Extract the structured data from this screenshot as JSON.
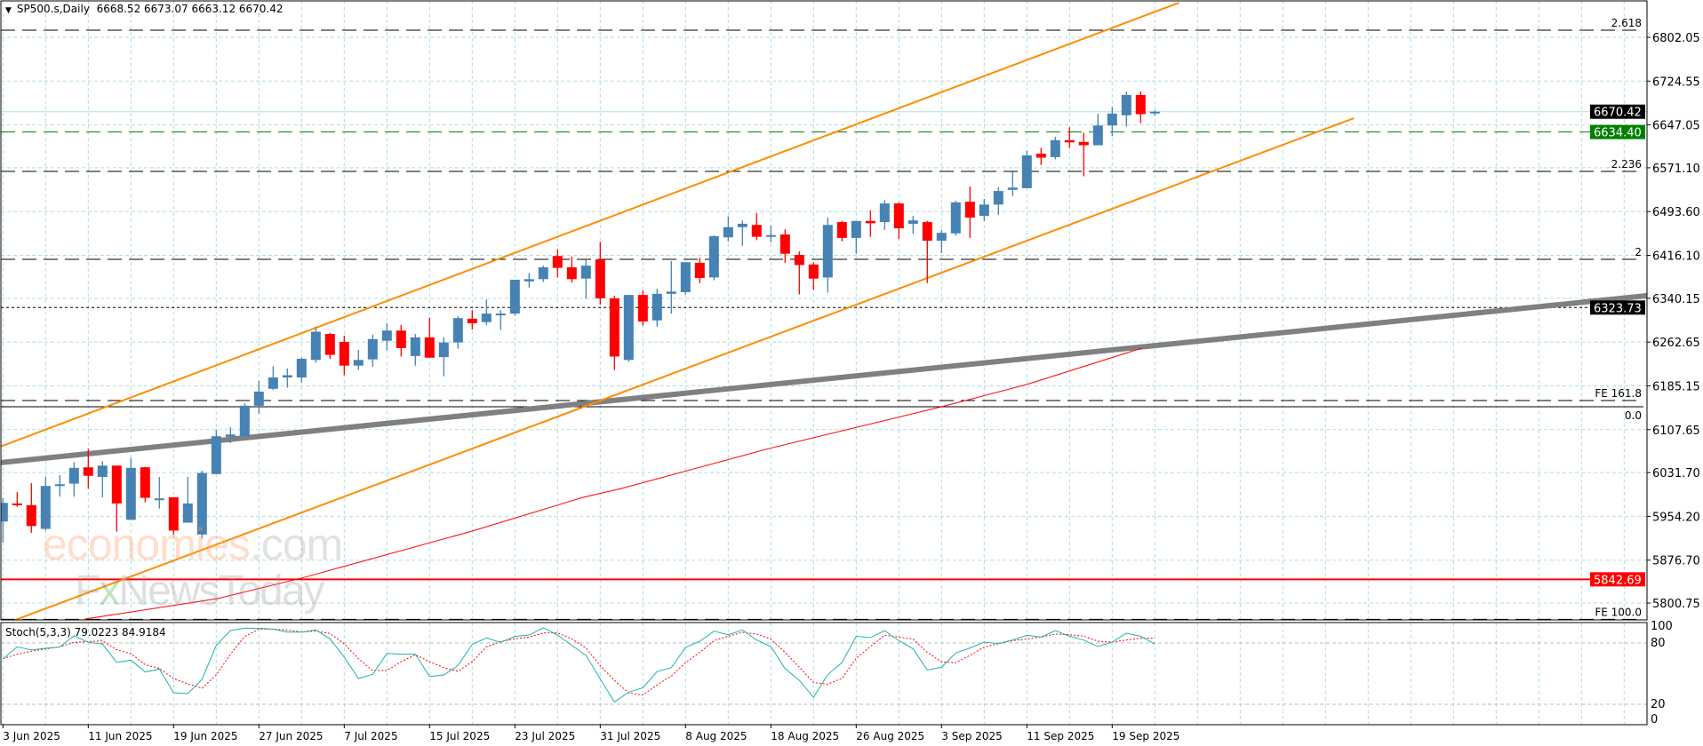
{
  "header": {
    "arrow_icon": "triangle-down-icon",
    "symbol": "SP500.s,Daily",
    "ohlc": "6668.52 6673.07 6663.12 6670.42"
  },
  "watermark": {
    "part1": "economies",
    "part2": ".com",
    "line2a": "F",
    "line2b": "x",
    "line2c": "NewsToday"
  },
  "colors": {
    "bull": "#4682B4",
    "bear": "#FF0000",
    "channel": "#FF8C00",
    "trendline": "#808080",
    "ma": "#FF0000",
    "grid": "#B0DDE0",
    "stoch_main": "#20B2AA",
    "stoch_signal": "#FF0000",
    "tag_dark": "#000000",
    "tag_green": "#008000",
    "tag_red": "#FF0000"
  },
  "chart_data": {
    "type": "candlestick",
    "title": "SP500.s,Daily",
    "ylim": [
      5771,
      6865
    ],
    "grid": true,
    "price_axis_ticks": [
      "6802.05",
      "6724.55",
      "6647.05",
      "6571.10",
      "6493.60",
      "6416.10",
      "6340.15",
      "6262.65",
      "6185.15",
      "6107.65",
      "6031.70",
      "5954.20",
      "5876.70",
      "5800.75"
    ],
    "date_labels": [
      {
        "i": 0,
        "label": "3 Jun 2025"
      },
      {
        "i": 6,
        "label": "11 Jun 2025"
      },
      {
        "i": 12,
        "label": "19 Jun 2025"
      },
      {
        "i": 18,
        "label": "27 Jun 2025"
      },
      {
        "i": 24,
        "label": "7 Jul 2025"
      },
      {
        "i": 30,
        "label": "15 Jul 2025"
      },
      {
        "i": 36,
        "label": "23 Jul 2025"
      },
      {
        "i": 42,
        "label": "31 Jul 2025"
      },
      {
        "i": 48,
        "label": "8 Aug 2025"
      },
      {
        "i": 54,
        "label": "18 Aug 2025"
      },
      {
        "i": 60,
        "label": "26 Aug 2025"
      },
      {
        "i": 66,
        "label": "3 Sep 2025"
      },
      {
        "i": 72,
        "label": "11 Sep 2025"
      },
      {
        "i": 78,
        "label": "19 Sep 2025"
      }
    ],
    "candles_ohlc": [
      [
        5945,
        5987,
        5908,
        5978
      ],
      [
        5977,
        5997,
        5971,
        5974
      ],
      [
        5974,
        6013,
        5925,
        5937
      ],
      [
        5932,
        6024,
        5929,
        6008
      ],
      [
        6008,
        6027,
        5989,
        6011
      ],
      [
        6012,
        6050,
        5989,
        6040
      ],
      [
        6041,
        6074,
        6003,
        6026
      ],
      [
        6024,
        6052,
        5988,
        6044
      ],
      [
        6044,
        6044,
        5927,
        5977
      ],
      [
        5948,
        6057,
        5948,
        6040
      ],
      [
        6041,
        6042,
        5979,
        5987
      ],
      [
        5984,
        6024,
        5968,
        5986
      ],
      [
        5988,
        5988,
        5921,
        5929
      ],
      [
        5943,
        6024,
        5943,
        5977
      ],
      [
        5922,
        6035,
        5915,
        6031
      ],
      [
        6029,
        6108,
        6029,
        6096
      ],
      [
        6095,
        6112,
        6084,
        6099
      ],
      [
        6096,
        6154,
        6096,
        6150
      ],
      [
        6150,
        6194,
        6136,
        6175
      ],
      [
        6180,
        6220,
        6178,
        6200
      ],
      [
        6200,
        6216,
        6182,
        6204
      ],
      [
        6200,
        6235,
        6191,
        6233
      ],
      [
        6231,
        6290,
        6226,
        6281
      ],
      [
        6277,
        6279,
        6233,
        6240
      ],
      [
        6263,
        6274,
        6204,
        6221
      ],
      [
        6221,
        6249,
        6213,
        6231
      ],
      [
        6232,
        6276,
        6219,
        6268
      ],
      [
        6265,
        6296,
        6248,
        6283
      ],
      [
        6283,
        6293,
        6237,
        6252
      ],
      [
        6238,
        6277,
        6221,
        6271
      ],
      [
        6271,
        6306,
        6235,
        6235
      ],
      [
        6236,
        6271,
        6202,
        6262
      ],
      [
        6262,
        6309,
        6251,
        6305
      ],
      [
        6304,
        6319,
        6285,
        6296
      ],
      [
        6298,
        6338,
        6293,
        6313
      ],
      [
        6312,
        6319,
        6284,
        6313
      ],
      [
        6313,
        6373,
        6309,
        6373
      ],
      [
        6370,
        6385,
        6359,
        6374
      ],
      [
        6374,
        6398,
        6369,
        6395
      ],
      [
        6415,
        6427,
        6377,
        6394
      ],
      [
        6395,
        6414,
        6368,
        6374
      ],
      [
        6375,
        6409,
        6339,
        6398
      ],
      [
        6409,
        6440,
        6329,
        6340
      ],
      [
        6340,
        6345,
        6213,
        6237
      ],
      [
        6231,
        6346,
        6228,
        6346
      ],
      [
        6346,
        6354,
        6292,
        6299
      ],
      [
        6301,
        6357,
        6290,
        6348
      ],
      [
        6348,
        6406,
        6313,
        6352
      ],
      [
        6351,
        6404,
        6347,
        6404
      ],
      [
        6403,
        6412,
        6367,
        6376
      ],
      [
        6377,
        6452,
        6372,
        6450
      ],
      [
        6448,
        6485,
        6441,
        6466
      ],
      [
        6466,
        6478,
        6433,
        6472
      ],
      [
        6470,
        6491,
        6443,
        6449
      ],
      [
        6451,
        6469,
        6439,
        6452
      ],
      [
        6453,
        6462,
        6403,
        6419
      ],
      [
        6417,
        6423,
        6347,
        6399
      ],
      [
        6400,
        6404,
        6355,
        6375
      ],
      [
        6377,
        6483,
        6350,
        6470
      ],
      [
        6475,
        6477,
        6441,
        6447
      ],
      [
        6447,
        6477,
        6419,
        6477
      ],
      [
        6477,
        6496,
        6449,
        6473
      ],
      [
        6475,
        6514,
        6461,
        6508
      ],
      [
        6508,
        6510,
        6445,
        6464
      ],
      [
        6472,
        6486,
        6454,
        6478
      ],
      [
        6475,
        6477,
        6367,
        6442
      ],
      [
        6442,
        6461,
        6420,
        6456
      ],
      [
        6455,
        6513,
        6451,
        6510
      ],
      [
        6511,
        6538,
        6447,
        6483
      ],
      [
        6486,
        6516,
        6477,
        6506
      ],
      [
        6506,
        6537,
        6488,
        6530
      ],
      [
        6532,
        6564,
        6521,
        6536
      ],
      [
        6535,
        6601,
        6535,
        6593
      ],
      [
        6596,
        6606,
        6576,
        6589
      ],
      [
        6590,
        6626,
        6586,
        6620
      ],
      [
        6620,
        6643,
        6606,
        6616
      ],
      [
        6617,
        6633,
        6556,
        6611
      ],
      [
        6611,
        6667,
        6611,
        6646
      ],
      [
        6646,
        6679,
        6627,
        6667
      ],
      [
        6664,
        6706,
        6644,
        6700
      ],
      [
        6700,
        6706,
        6650,
        6666
      ],
      [
        6668.52,
        6673.07,
        6663.12,
        6670.42
      ]
    ],
    "moving_average": [
      [
        3,
        5730
      ],
      [
        5.8,
        5772.5
      ],
      [
        15.1,
        5808.7
      ],
      [
        21,
        5844.9
      ],
      [
        33,
        5928.1
      ],
      [
        40.8,
        5987.9
      ],
      [
        43.5,
        6003.6
      ],
      [
        53.9,
        6074.4
      ],
      [
        66,
        6148.2
      ],
      [
        72,
        6187.6
      ],
      [
        80.1,
        6252.0
      ]
    ],
    "channel_upper": [
      [
        -0.2,
        6077.4
      ],
      [
        82.7,
        6863.3
      ]
    ],
    "channel_lower": [
      [
        0,
        5762.7
      ],
      [
        95,
        6659
      ]
    ],
    "trendline": [
      [
        -0.2,
        6049.2
      ],
      [
        115.6,
        6344.7
      ]
    ],
    "levels": [
      {
        "price": 6814.6,
        "label": "2.618",
        "style": "dash",
        "color": "#000000"
      },
      {
        "price": 6564.7,
        "label": "2.236",
        "style": "dash",
        "color": "#000000"
      },
      {
        "price": 6409.0,
        "label": "2",
        "style": "dash",
        "color": "#000000"
      },
      {
        "price": 6159.2,
        "label": "FE 161.8",
        "style": "dash",
        "color": "#000000"
      },
      {
        "price": 6148.2,
        "label": "0.0",
        "style": "solid",
        "color": "#000000"
      },
      {
        "price": 5772.0,
        "label": "FE 100.0",
        "style": "dash",
        "color": "#000000"
      },
      {
        "price": 6634.4,
        "label": "",
        "style": "dash",
        "color": "#008000"
      },
      {
        "price": 6323.73,
        "label": "",
        "style": "dot",
        "color": "#000000"
      },
      {
        "price": 5842.69,
        "label": "",
        "style": "solid",
        "color": "#FF0000"
      },
      {
        "price": 6670.42,
        "label": "",
        "style": "solid",
        "color": "#B0DDE0"
      }
    ],
    "price_tags": [
      {
        "price": 6670.42,
        "text": "6670.42",
        "color": "#000000"
      },
      {
        "price": 6634.4,
        "text": "6634.40",
        "color": "#008000"
      },
      {
        "price": 6323.73,
        "text": "6323.73",
        "color": "#000000"
      },
      {
        "price": 5842.69,
        "text": "5842.69",
        "color": "#FF0000"
      }
    ],
    "stochastic": {
      "label": "Stoch(5,3,3) 79.0223 84.9184",
      "levels": [
        "100",
        "80",
        "20",
        "0"
      ],
      "main": [
        64.6,
        76.2,
        73.3,
        74.8,
        76.2,
        87,
        80.6,
        79.1,
        60.9,
        63.2,
        51.6,
        54.5,
        31.3,
        30.4,
        44.3,
        77.7,
        92.2,
        94.5,
        94.5,
        93.6,
        90.7,
        90.7,
        92.8,
        84.1,
        66.1,
        45.2,
        49.3,
        69.8,
        69,
        69,
        47.2,
        48.7,
        58,
        78.6,
        85,
        80.6,
        86.4,
        87.8,
        94.8,
        87.8,
        77.7,
        67.9,
        44.8,
        22.3,
        31.8,
        36.1,
        52,
        55.8,
        75.7,
        81.7,
        91.5,
        88.1,
        92.7,
        82.9,
        76.5,
        54.9,
        43.4,
        26.9,
        49.1,
        60.7,
        86.6,
        85.2,
        92.1,
        82.3,
        74.2,
        53.5,
        56.3,
        70.2,
        75.1,
        80.9,
        79.4,
        82.9,
        87.5,
        85.8,
        92.1,
        86.6,
        82.9,
        76.5,
        80.9,
        89.5,
        86.6,
        79.02
      ],
      "signal": [
        64.6,
        69,
        71.9,
        74.2,
        76.2,
        80.6,
        81.4,
        82,
        73.3,
        69.6,
        58.8,
        55.1,
        45.2,
        40,
        35.7,
        48.7,
        69,
        86.4,
        93.6,
        93.6,
        92.8,
        90.7,
        91.6,
        89.3,
        79.1,
        64.6,
        53,
        53,
        61.7,
        68.4,
        61.7,
        55.9,
        52.2,
        61.7,
        76.2,
        81.4,
        84,
        85.8,
        89.9,
        89.9,
        84,
        75,
        57.8,
        43.4,
        31,
        29,
        39,
        47.7,
        60.7,
        70.8,
        82.3,
        86.6,
        90.4,
        88.7,
        83.8,
        70.8,
        56.3,
        41.3,
        39.6,
        45.4,
        65,
        76.5,
        87.5,
        85.8,
        83.8,
        70.8,
        61.5,
        60.7,
        67.9,
        76,
        79.4,
        82.3,
        83.8,
        85.8,
        88.7,
        88.1,
        86.6,
        81.7,
        80.9,
        82.9,
        84.6,
        84.92
      ]
    }
  }
}
